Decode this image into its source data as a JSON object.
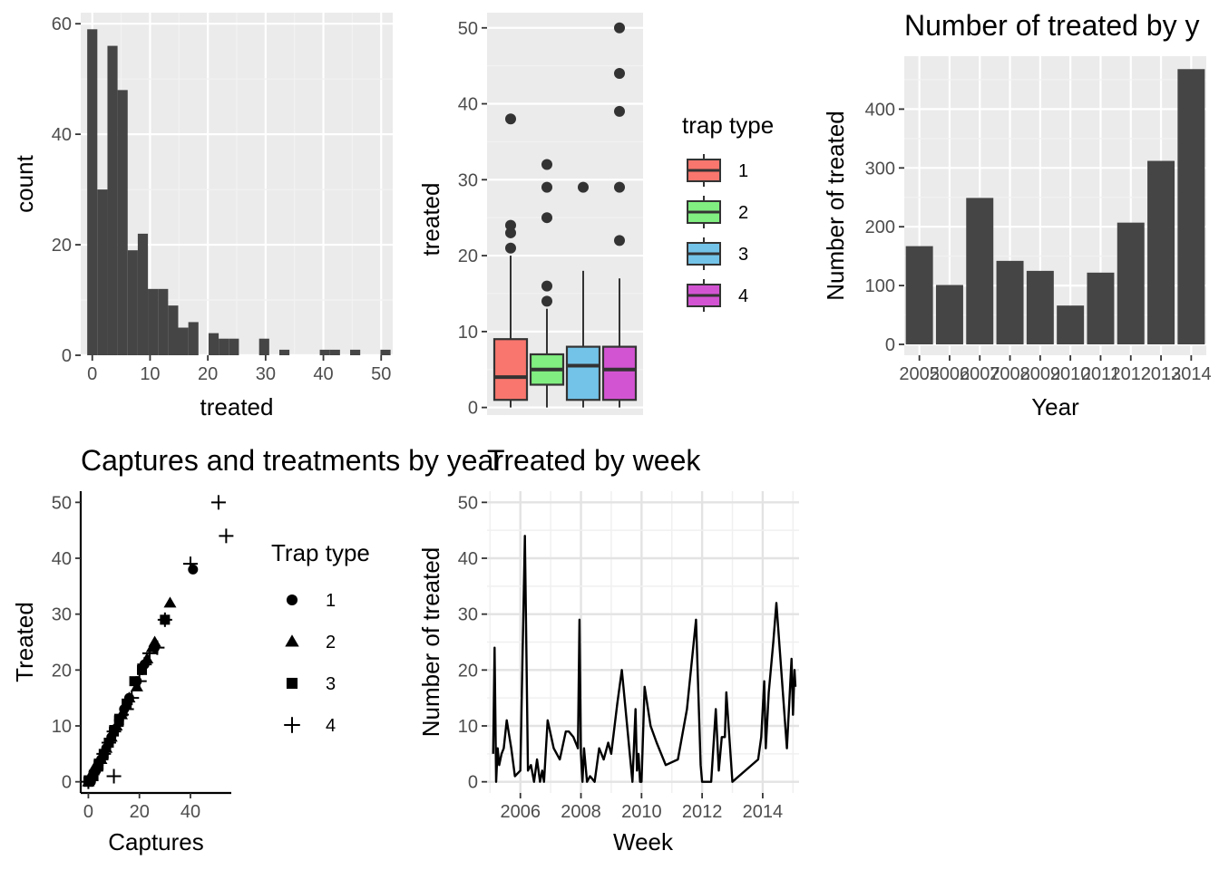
{
  "chart_data": [
    {
      "type": "bar",
      "subtype": "histogram",
      "xlabel": "treated",
      "ylabel": "count",
      "xlim": [
        -2,
        52
      ],
      "ylim": [
        0,
        62
      ],
      "xticks": [
        0,
        10,
        20,
        30,
        40,
        50
      ],
      "yticks": [
        0,
        20,
        40,
        60
      ],
      "bin_width": 1.75,
      "bin_starts": [
        -0.875,
        0.875,
        2.625,
        4.375,
        6.125,
        7.875,
        9.625,
        11.375,
        13.125,
        14.875,
        16.625,
        18.375,
        20.125,
        21.875,
        23.625,
        25.375,
        27.125,
        28.875,
        30.625,
        32.375,
        34.125,
        35.875,
        37.625,
        39.375,
        41.125,
        42.875,
        44.625,
        46.375,
        48.125,
        49.875
      ],
      "values": [
        59,
        30,
        56,
        48,
        19,
        22,
        12,
        12,
        9,
        5,
        6,
        0,
        4,
        3,
        3,
        0,
        0,
        3,
        0,
        1,
        0,
        0,
        0,
        1,
        1,
        0,
        1,
        0,
        0,
        1
      ],
      "grid": true
    },
    {
      "type": "box",
      "xlabel": "",
      "ylabel": "treated",
      "ylim": [
        -1,
        52
      ],
      "yticks": [
        0,
        10,
        20,
        30,
        40,
        50
      ],
      "legend": {
        "title": "trap type",
        "labels": [
          "1",
          "2",
          "3",
          "4"
        ],
        "position": "right"
      },
      "series": [
        {
          "name": "1",
          "color": "#F8766D",
          "whisker_low": 0,
          "q1": 1,
          "median": 4,
          "q3": 9,
          "whisker_high": 20,
          "outliers": [
            21,
            23,
            24,
            38
          ]
        },
        {
          "name": "2",
          "color": "#7CAE00",
          "fill": "#80EE80",
          "whisker_low": 0,
          "q1": 3,
          "median": 5,
          "q3": 7,
          "whisker_high": 13,
          "outliers": [
            14,
            16,
            25,
            29,
            32
          ]
        },
        {
          "name": "3",
          "color": "#73C3E8",
          "whisker_low": 0,
          "q1": 1,
          "median": 5.5,
          "q3": 8,
          "whisker_high": 18,
          "outliers": [
            29
          ]
        },
        {
          "name": "4",
          "color": "#D354D3",
          "whisker_low": 0,
          "q1": 1,
          "median": 5,
          "q3": 8,
          "whisker_high": 17,
          "outliers": [
            22,
            29,
            39,
            44,
            50
          ]
        }
      ],
      "grid": true
    },
    {
      "type": "bar",
      "title": "Number of treated by y",
      "xlabel": "Year",
      "ylabel": "Number of treated",
      "categories": [
        "2005",
        "2006",
        "2007",
        "2008",
        "2009",
        "2010",
        "2011",
        "2012",
        "2013",
        "2014"
      ],
      "values": [
        167,
        101,
        249,
        142,
        125,
        66,
        122,
        207,
        312,
        468
      ],
      "ylim": [
        0,
        490
      ],
      "yticks": [
        0,
        100,
        200,
        300,
        400
      ],
      "grid": true
    },
    {
      "type": "scatter",
      "title": "Captures and treatments by year",
      "xlabel": "Captures",
      "ylabel": "Treated",
      "xlim": [
        -3,
        56
      ],
      "ylim": [
        -2,
        52
      ],
      "xticks": [
        0,
        20,
        40
      ],
      "yticks": [
        0,
        10,
        20,
        30,
        40,
        50
      ],
      "legend": {
        "title": "Trap type",
        "labels": [
          "1",
          "2",
          "3",
          "4"
        ],
        "shapes": [
          "circle",
          "triangle",
          "square",
          "plus"
        ],
        "position": "right"
      },
      "series": [
        {
          "name": "1",
          "shape": "circle",
          "points": [
            [
              0,
              0
            ],
            [
              1,
              0
            ],
            [
              2,
              1
            ],
            [
              3,
              2
            ],
            [
              4,
              3
            ],
            [
              5,
              4
            ],
            [
              6,
              5
            ],
            [
              7,
              6
            ],
            [
              8,
              7
            ],
            [
              9,
              8
            ],
            [
              10,
              9
            ],
            [
              12,
              11
            ],
            [
              14,
              13
            ],
            [
              16,
              15
            ],
            [
              19,
              18
            ],
            [
              21,
              20
            ],
            [
              22,
              21
            ],
            [
              26,
              24
            ],
            [
              30,
              29
            ],
            [
              41,
              38
            ]
          ]
        },
        {
          "name": "2",
          "shape": "triangle",
          "points": [
            [
              0,
              0
            ],
            [
              2,
              2
            ],
            [
              3,
              3
            ],
            [
              5,
              4
            ],
            [
              7,
              6
            ],
            [
              9,
              8
            ],
            [
              11,
              10
            ],
            [
              13,
              12
            ],
            [
              16,
              15
            ],
            [
              19,
              17
            ],
            [
              23,
              22
            ],
            [
              25,
              24
            ],
            [
              26,
              25
            ],
            [
              32,
              32
            ]
          ]
        },
        {
          "name": "3",
          "shape": "square",
          "points": [
            [
              0,
              0
            ],
            [
              2,
              1
            ],
            [
              4,
              3
            ],
            [
              6,
              5
            ],
            [
              8,
              7
            ],
            [
              10,
              9
            ],
            [
              12,
              11
            ],
            [
              15,
              14
            ],
            [
              18,
              18
            ],
            [
              21,
              20
            ],
            [
              30,
              29
            ]
          ]
        },
        {
          "name": "4",
          "shape": "plus",
          "points": [
            [
              0,
              0
            ],
            [
              1,
              1
            ],
            [
              3,
              2
            ],
            [
              5,
              4
            ],
            [
              6,
              5
            ],
            [
              8,
              7
            ],
            [
              10,
              9
            ],
            [
              11,
              10
            ],
            [
              13,
              12
            ],
            [
              15,
              13
            ],
            [
              17,
              15
            ],
            [
              20,
              18
            ],
            [
              22,
              21
            ],
            [
              24,
              23
            ],
            [
              27,
              24
            ],
            [
              30,
              29
            ],
            [
              40,
              39
            ],
            [
              51,
              50
            ],
            [
              54,
              44
            ],
            [
              10,
              1
            ]
          ]
        }
      ],
      "grid": false
    },
    {
      "type": "line",
      "title": "Treated by week",
      "xlabel": "Week",
      "ylabel": "Number of treated",
      "xlim": [
        2004.9,
        2015.2
      ],
      "ylim": [
        -2,
        52
      ],
      "xticks": [
        2006,
        2008,
        2010,
        2012,
        2014
      ],
      "yticks": [
        0,
        10,
        20,
        30,
        40,
        50
      ],
      "x": [
        2005.1,
        2005.15,
        2005.2,
        2005.25,
        2005.3,
        2005.38,
        2005.45,
        2005.55,
        2005.7,
        2005.82,
        2006.0,
        2006.15,
        2006.25,
        2006.35,
        2006.45,
        2006.55,
        2006.65,
        2006.72,
        2006.78,
        2006.9,
        2007.1,
        2007.3,
        2007.5,
        2007.6,
        2007.75,
        2007.9,
        2007.95,
        2008.0,
        2008.05,
        2008.1,
        2008.2,
        2008.3,
        2008.45,
        2008.6,
        2008.75,
        2008.9,
        2009.0,
        2009.2,
        2009.35,
        2009.7,
        2009.8,
        2009.85,
        2009.9,
        2009.95,
        2010.0,
        2010.1,
        2010.3,
        2010.5,
        2010.8,
        2011.2,
        2011.5,
        2011.8,
        2011.95,
        2012.0,
        2012.1,
        2012.3,
        2012.45,
        2012.55,
        2012.65,
        2012.75,
        2012.8,
        2013.0,
        2013.85,
        2013.95,
        2014.05,
        2014.1,
        2014.2,
        2014.35,
        2014.45,
        2014.8,
        2014.95,
        2015.0,
        2015.05,
        2015.08
      ],
      "values": [
        5,
        24,
        0,
        6,
        3,
        5,
        6,
        11,
        6,
        1,
        2,
        44,
        2,
        3,
        0,
        4,
        0,
        2,
        0,
        11,
        6,
        4,
        9,
        9,
        8,
        6,
        29,
        5,
        0,
        6,
        0,
        1,
        0,
        6,
        4,
        7,
        5,
        14,
        20,
        0,
        13,
        2,
        5,
        0,
        0,
        17,
        10,
        7,
        3,
        4,
        13,
        29,
        3,
        0,
        0,
        0,
        13,
        2,
        8,
        8,
        16,
        0,
        4,
        8,
        18,
        6,
        16,
        25,
        32,
        6,
        22,
        12,
        20,
        17
      ],
      "grid": true
    }
  ]
}
